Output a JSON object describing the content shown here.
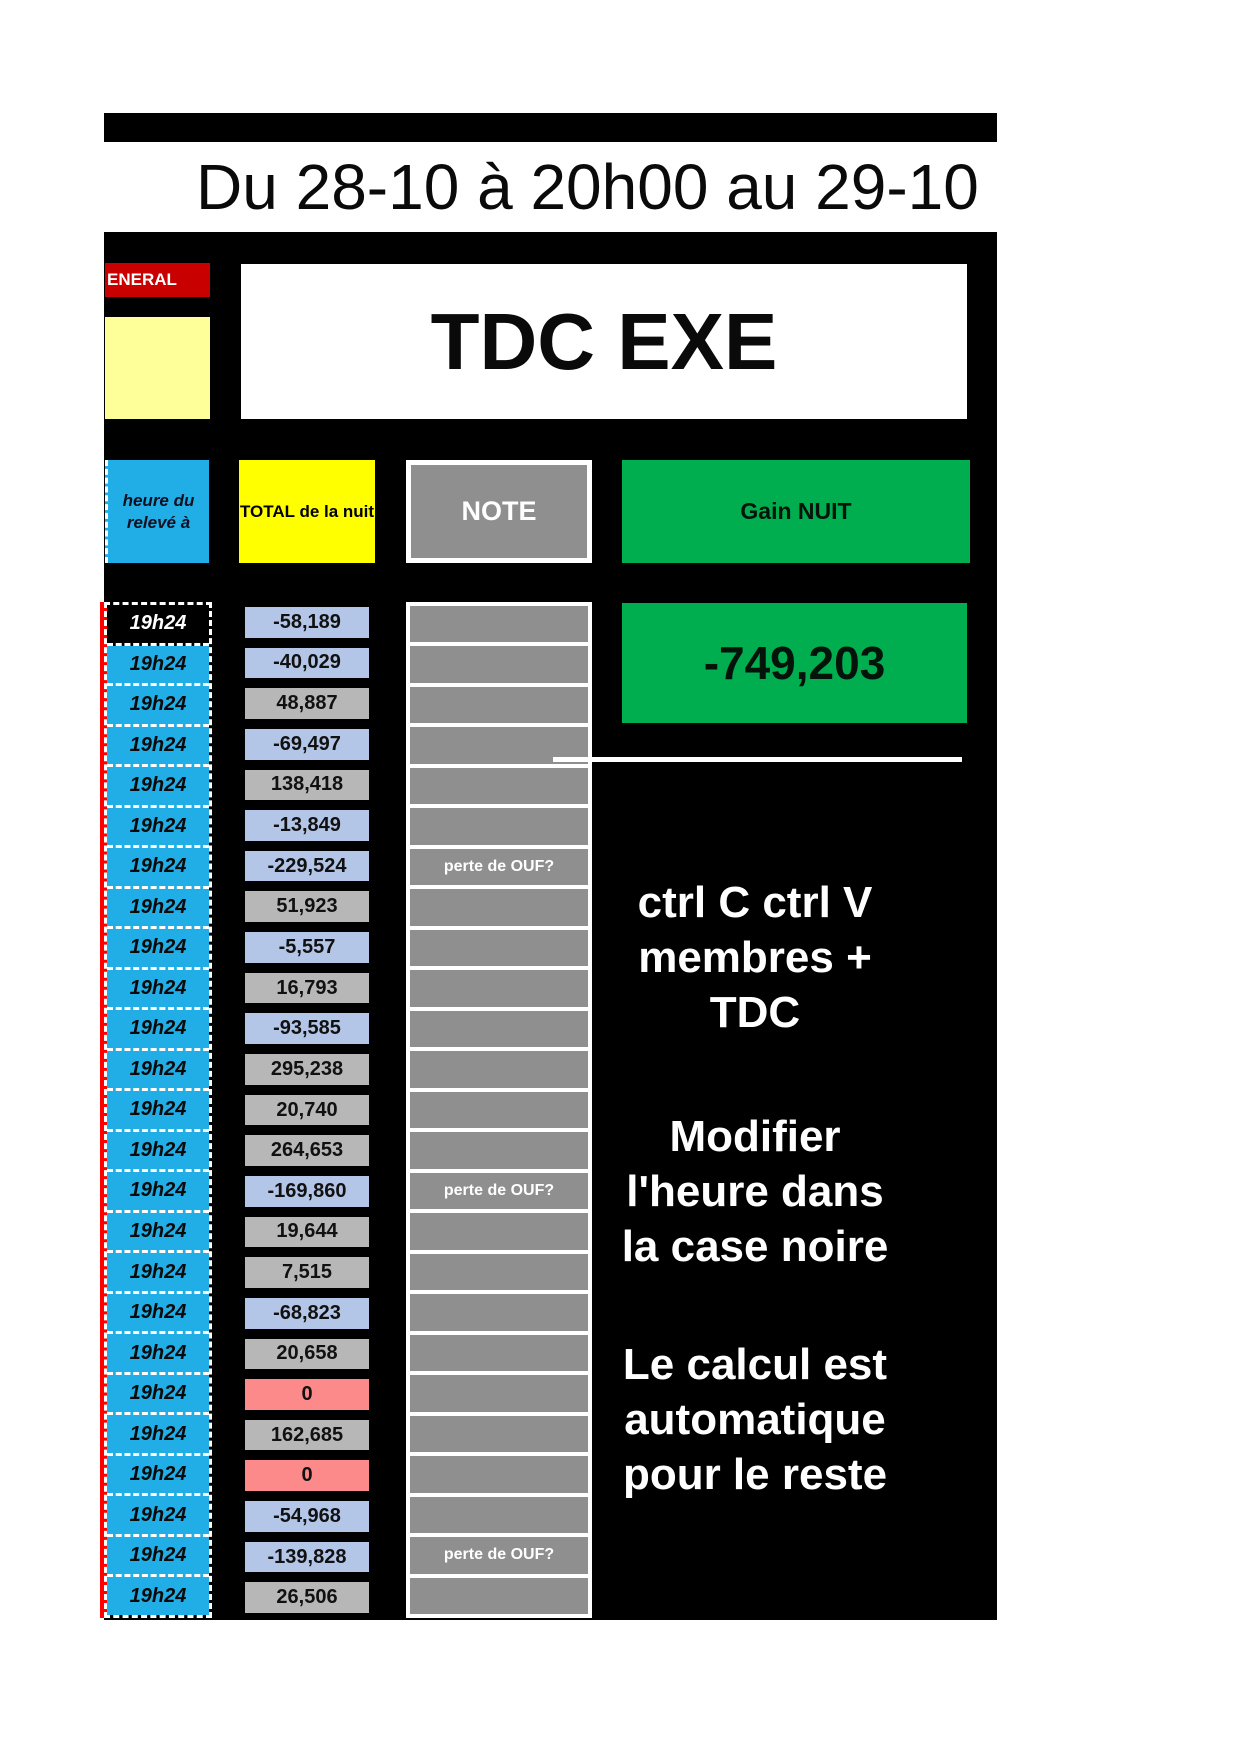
{
  "banner": {
    "title": "Du 28-10 à 20h00 au 29-10"
  },
  "sheet_tab_label": "ENERAL",
  "card_title": "TDC EXE",
  "headers": {
    "time": "heure du relevé à",
    "total": "TOTAL de la nuit",
    "note": "NOTE",
    "gain": "Gain NUIT"
  },
  "summary": {
    "gain_nuit_value": "-749,203"
  },
  "instructions": {
    "copy_paste": "ctrl C ctrl V\nmembres +\nTDC",
    "edit_hour": "Modifier\nl'heure dans\nla case noire",
    "auto_calc": "Le calcul est\nautomatique\npour le reste"
  },
  "rows": [
    {
      "time": "19h24",
      "value": "-58,189",
      "tone": "negative",
      "note": ""
    },
    {
      "time": "19h24",
      "value": "-40,029",
      "tone": "negative",
      "note": ""
    },
    {
      "time": "19h24",
      "value": "48,887",
      "tone": "positive",
      "note": ""
    },
    {
      "time": "19h24",
      "value": "-69,497",
      "tone": "negative",
      "note": ""
    },
    {
      "time": "19h24",
      "value": "138,418",
      "tone": "positive",
      "note": ""
    },
    {
      "time": "19h24",
      "value": "-13,849",
      "tone": "negative",
      "note": ""
    },
    {
      "time": "19h24",
      "value": "-229,524",
      "tone": "negative",
      "note": "perte de OUF?"
    },
    {
      "time": "19h24",
      "value": "51,923",
      "tone": "positive",
      "note": ""
    },
    {
      "time": "19h24",
      "value": "-5,557",
      "tone": "negative",
      "note": ""
    },
    {
      "time": "19h24",
      "value": "16,793",
      "tone": "positive",
      "note": ""
    },
    {
      "time": "19h24",
      "value": "-93,585",
      "tone": "negative",
      "note": ""
    },
    {
      "time": "19h24",
      "value": "295,238",
      "tone": "positive",
      "note": ""
    },
    {
      "time": "19h24",
      "value": "20,740",
      "tone": "positive",
      "note": ""
    },
    {
      "time": "19h24",
      "value": "264,653",
      "tone": "positive",
      "note": ""
    },
    {
      "time": "19h24",
      "value": "-169,860",
      "tone": "negative",
      "note": "perte de OUF?"
    },
    {
      "time": "19h24",
      "value": "19,644",
      "tone": "positive",
      "note": ""
    },
    {
      "time": "19h24",
      "value": "7,515",
      "tone": "positive",
      "note": ""
    },
    {
      "time": "19h24",
      "value": "-68,823",
      "tone": "negative",
      "note": ""
    },
    {
      "time": "19h24",
      "value": "20,658",
      "tone": "positive",
      "note": ""
    },
    {
      "time": "19h24",
      "value": "0",
      "tone": "zero",
      "note": ""
    },
    {
      "time": "19h24",
      "value": "162,685",
      "tone": "positive",
      "note": ""
    },
    {
      "time": "19h24",
      "value": "0",
      "tone": "zero",
      "note": ""
    },
    {
      "time": "19h24",
      "value": "-54,968",
      "tone": "negative",
      "note": ""
    },
    {
      "time": "19h24",
      "value": "-139,828",
      "tone": "negative",
      "note": "perte de OUF?"
    },
    {
      "time": "19h24",
      "value": "26,506",
      "tone": "positive",
      "note": ""
    }
  ],
  "colors": {
    "accent_green": "#00AD4F",
    "row_negative_bg": "#B4C6E7",
    "row_positive_bg": "#B7B7B7",
    "row_zero_bg": "#FC8A8A",
    "time_cell_blue": "#21AEE6",
    "sheet_label_red": "#C80000",
    "edge_stripe_red": "#FF0000",
    "note_gray": "#8F8F8F",
    "pale_yellow": "#FFFF99",
    "bright_yellow": "#FFFF00",
    "panel_black": "#000000"
  }
}
